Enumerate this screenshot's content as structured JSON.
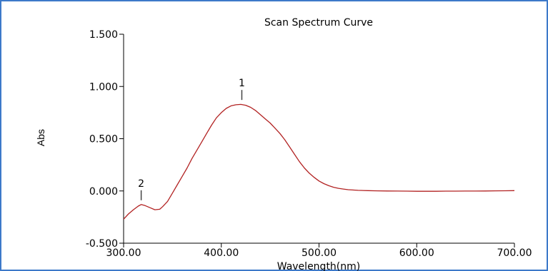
{
  "chart_data": {
    "type": "line",
    "title": "Scan Spectrum Curve",
    "xlabel": "Wavelength(nm)",
    "ylabel": "Abs",
    "xlim": [
      300,
      700
    ],
    "ylim": [
      -0.5,
      1.5
    ],
    "x_ticks": [
      "300.00",
      "400.00",
      "500.00",
      "600.00",
      "700.00"
    ],
    "y_ticks": [
      "1.500",
      "1.000",
      "0.500",
      "0.000",
      "-0.500"
    ],
    "grid": false,
    "line_color": "#b22222",
    "frame_color": "#3d79c9",
    "peaks": [
      {
        "label": "1",
        "x": 421,
        "y": 0.83
      },
      {
        "label": "2",
        "x": 318,
        "y": -0.13
      }
    ],
    "series": [
      {
        "x": [
          300,
          305,
          310,
          315,
          318,
          322,
          327,
          332,
          337,
          340,
          345,
          350,
          355,
          360,
          365,
          370,
          375,
          380,
          385,
          390,
          395,
          400,
          405,
          410,
          415,
          420,
          425,
          430,
          435,
          440,
          445,
          450,
          455,
          460,
          465,
          470,
          475,
          480,
          485,
          490,
          495,
          500,
          505,
          510,
          515,
          520,
          525,
          530,
          540,
          550,
          560,
          570,
          580,
          590,
          600,
          610,
          620,
          630,
          640,
          650,
          660,
          670,
          680,
          690,
          700
        ],
        "y": [
          -0.27,
          -0.22,
          -0.18,
          -0.145,
          -0.13,
          -0.14,
          -0.16,
          -0.18,
          -0.175,
          -0.15,
          -0.1,
          -0.02,
          0.06,
          0.14,
          0.22,
          0.31,
          0.39,
          0.47,
          0.55,
          0.63,
          0.7,
          0.75,
          0.79,
          0.815,
          0.825,
          0.828,
          0.82,
          0.8,
          0.77,
          0.73,
          0.69,
          0.65,
          0.6,
          0.55,
          0.49,
          0.42,
          0.35,
          0.28,
          0.22,
          0.17,
          0.13,
          0.095,
          0.07,
          0.05,
          0.035,
          0.025,
          0.018,
          0.012,
          0.006,
          0.003,
          0.001,
          0.0,
          -0.001,
          -0.002,
          -0.003,
          -0.003,
          -0.003,
          -0.002,
          -0.002,
          -0.001,
          -0.001,
          0.0,
          0.001,
          0.002,
          0.003
        ]
      }
    ]
  }
}
